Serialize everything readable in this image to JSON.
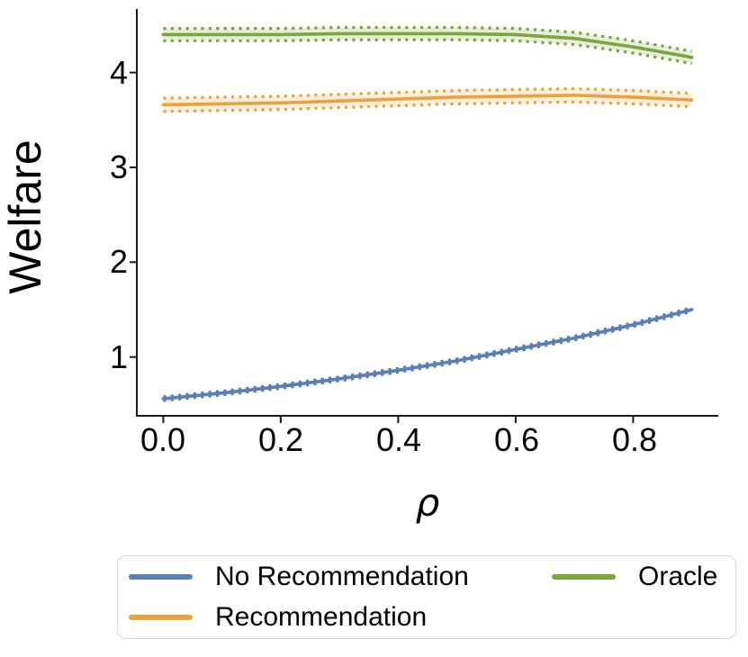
{
  "chart_data": {
    "type": "line",
    "title": "",
    "xlabel": "ρ",
    "ylabel": "Welfare",
    "x": [
      0.0,
      0.1,
      0.2,
      0.3,
      0.4,
      0.5,
      0.6,
      0.7,
      0.8,
      0.9
    ],
    "series": [
      {
        "name": "No Recommendation",
        "color": "#5B7FB5",
        "values": [
          0.56,
          0.62,
          0.69,
          0.77,
          0.86,
          0.96,
          1.08,
          1.2,
          1.34,
          1.5
        ],
        "ci_halfwidth": 0.02
      },
      {
        "name": "Recommendation",
        "color": "#E8A33D",
        "values": [
          3.66,
          3.67,
          3.68,
          3.7,
          3.72,
          3.74,
          3.75,
          3.76,
          3.74,
          3.71
        ],
        "ci_halfwidth": 0.07
      },
      {
        "name": "Oracle",
        "color": "#7CA63C",
        "values": [
          4.4,
          4.4,
          4.4,
          4.41,
          4.41,
          4.41,
          4.4,
          4.36,
          4.27,
          4.16
        ],
        "ci_halfwidth": 0.065
      }
    ],
    "band_style": "dotted edges with light fill",
    "xtick_labels": [
      "0.0",
      "0.2",
      "0.4",
      "0.6",
      "0.8"
    ],
    "xtick_values": [
      0.0,
      0.2,
      0.4,
      0.6,
      0.8
    ],
    "ytick_labels": [
      "1",
      "2",
      "3",
      "4"
    ],
    "ytick_values": [
      1,
      2,
      3,
      4
    ],
    "xlim": [
      -0.045,
      0.945
    ],
    "ylim": [
      0.38,
      4.67
    ],
    "grid": false,
    "legend_position": "below-outside"
  },
  "legend": {
    "items": [
      {
        "label": "No Recommendation",
        "color": "#5B7FB5"
      },
      {
        "label": "Recommendation",
        "color": "#E8A33D"
      },
      {
        "label": "Oracle",
        "color": "#7CA63C"
      }
    ]
  },
  "axis": {
    "spine_color": "#1a1a1a"
  }
}
